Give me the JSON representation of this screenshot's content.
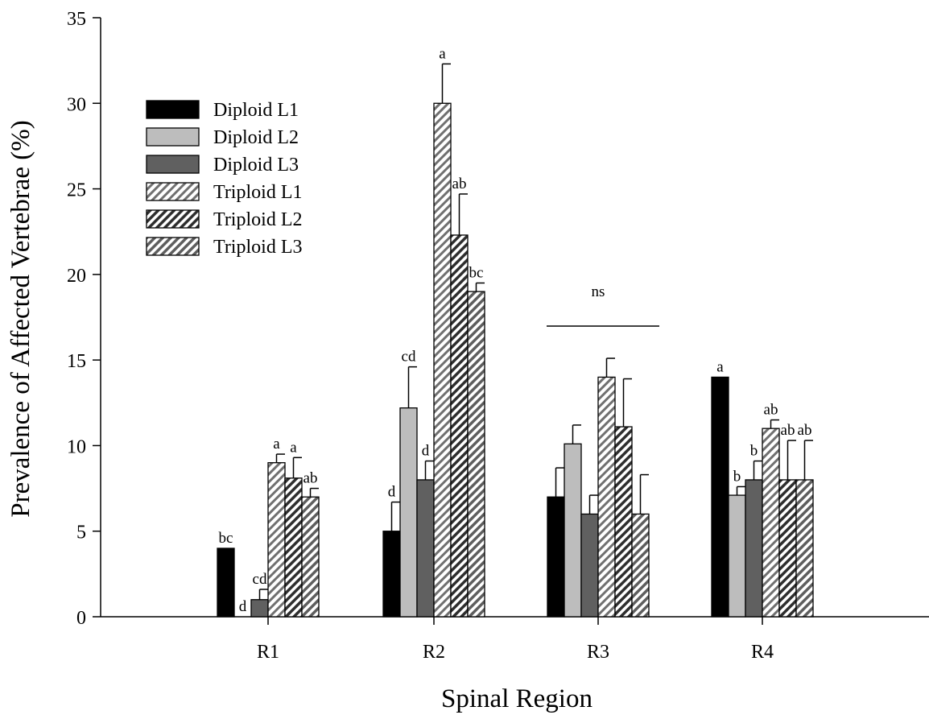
{
  "chart_data": {
    "type": "bar",
    "xlabel": "Spinal Region",
    "ylabel": "Prevalence of Affected Vertebrae (%)",
    "ylim": [
      0,
      35
    ],
    "yticks": [
      0,
      5,
      10,
      15,
      20,
      25,
      30,
      35
    ],
    "categories": [
      "R1",
      "R2",
      "R3",
      "R4"
    ],
    "legend_position": "upper-left",
    "grid": false,
    "series": [
      {
        "name": "Diploid L1",
        "fill": "#000000",
        "hatch": false,
        "values": [
          4,
          5,
          7,
          14
        ],
        "errors": [
          0,
          1.7,
          1.7,
          0
        ],
        "labels": [
          "bc",
          "d",
          "",
          "a"
        ]
      },
      {
        "name": "Diploid L2",
        "fill": "#bdbdbd",
        "hatch": false,
        "values": [
          0,
          12.2,
          10.1,
          7.1
        ],
        "errors": [
          0,
          2.4,
          1.1,
          0.5
        ],
        "labels": [
          "d",
          "cd",
          "",
          "b"
        ]
      },
      {
        "name": "Diploid L3",
        "fill": "#606060",
        "hatch": false,
        "values": [
          1,
          8,
          6,
          8
        ],
        "errors": [
          0.6,
          1.1,
          1.1,
          1.1
        ],
        "labels": [
          "cd",
          "d",
          "",
          "b"
        ]
      },
      {
        "name": "Triploid L1",
        "fill": "#ffffff",
        "hatch": true,
        "stripe": "#707070",
        "values": [
          9,
          30,
          14,
          11
        ],
        "errors": [
          0.5,
          2.3,
          1.1,
          0.5
        ],
        "labels": [
          "a",
          "a",
          "",
          "ab"
        ]
      },
      {
        "name": "Triploid L2",
        "fill": "#ffffff",
        "hatch": true,
        "stripe": "#2e2e2e",
        "values": [
          8.1,
          22.3,
          11.1,
          8
        ],
        "errors": [
          1.2,
          2.4,
          2.8,
          2.3
        ],
        "labels": [
          "a",
          "ab",
          "",
          "ab"
        ]
      },
      {
        "name": "Triploid L3",
        "fill": "#ffffff",
        "hatch": true,
        "stripe": "#5e5e5e",
        "values": [
          7,
          19,
          6,
          8
        ],
        "errors": [
          0.5,
          0.5,
          2.3,
          2.3
        ],
        "labels": [
          "ab",
          "bc",
          "",
          "ab"
        ]
      }
    ],
    "annotations": [
      {
        "text": "ns",
        "category": "R3"
      }
    ]
  }
}
